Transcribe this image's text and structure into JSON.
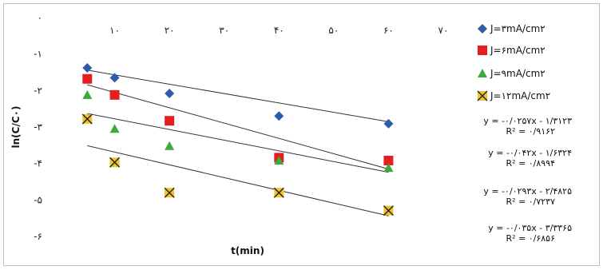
{
  "chart_data": {
    "type": "scatter",
    "xlabel": "t(min)",
    "ylabel": "ln(C/C۰)",
    "xlim": [
      0,
      70
    ],
    "ylim": [
      -6,
      0
    ],
    "x_ticks": [
      {
        "value": 10,
        "label": "۱۰"
      },
      {
        "value": 20,
        "label": "۲۰"
      },
      {
        "value": 30,
        "label": "۳۰"
      },
      {
        "value": 40,
        "label": "۴۰"
      },
      {
        "value": 50,
        "label": "۵۰"
      },
      {
        "value": 60,
        "label": "۶۰"
      },
      {
        "value": 70,
        "label": "۷۰"
      }
    ],
    "y_ticks": [
      {
        "value": 0,
        "label": "۰"
      },
      {
        "value": -1,
        "label": "-۱"
      },
      {
        "value": -2,
        "label": "-۲"
      },
      {
        "value": -3,
        "label": "-۳"
      },
      {
        "value": -4,
        "label": "-۴"
      },
      {
        "value": -5,
        "label": "-۵"
      },
      {
        "value": -6,
        "label": "-۶"
      }
    ],
    "legend_position": "right",
    "series": [
      {
        "name": "J=۳mA/cm۲",
        "marker": "diamond",
        "color": "#2e5da8",
        "x": [
          5,
          10,
          20,
          40,
          60
        ],
        "y": [
          -1.38,
          -1.65,
          -2.08,
          -2.7,
          -2.91
        ],
        "trend": {
          "slope": -0.0257,
          "intercept": -1.3123
        },
        "equation": "y = -۰/۰۲۵۷x - ۱/۳۱۲۳",
        "r2": "R² = ۰/۹۱۶۲"
      },
      {
        "name": "J=۶mA/cm۲",
        "marker": "square",
        "color": "#e41f1f",
        "x": [
          5,
          10,
          20,
          40,
          60
        ],
        "y": [
          -1.68,
          -2.12,
          -2.83,
          -3.84,
          -3.92
        ],
        "trend": {
          "slope": -0.042,
          "intercept": -1.6324
        },
        "equation": "y = -۰/۰۴۲x - ۱/۶۳۲۴",
        "r2": "R² = ۰/۸۹۹۴"
      },
      {
        "name": "J=۹mA/cm۲",
        "marker": "triangle",
        "color": "#3caa3c",
        "x": [
          5,
          10,
          20,
          40,
          60
        ],
        "y": [
          -2.12,
          -3.05,
          -3.52,
          -3.92,
          -4.12
        ],
        "trend": {
          "slope": -0.0293,
          "intercept": -2.4825
        },
        "equation": "y = -۰/۰۲۹۳x - ۲/۴۸۲۵",
        "r2": "R² = ۰/۷۲۳۷"
      },
      {
        "name": "J=۱۲mA/cm۲",
        "marker": "square-x",
        "color": "#f0c230",
        "x": [
          5,
          10,
          20,
          40,
          60
        ],
        "y": [
          -2.78,
          -3.97,
          -4.8,
          -4.8,
          -5.29
        ],
        "trend": {
          "slope": -0.035,
          "intercept": -3.3365
        },
        "equation": "y = -۰/۰۳۵x - ۳/۳۳۶۵",
        "r2": "R² = ۰/۶۸۵۶"
      }
    ]
  }
}
